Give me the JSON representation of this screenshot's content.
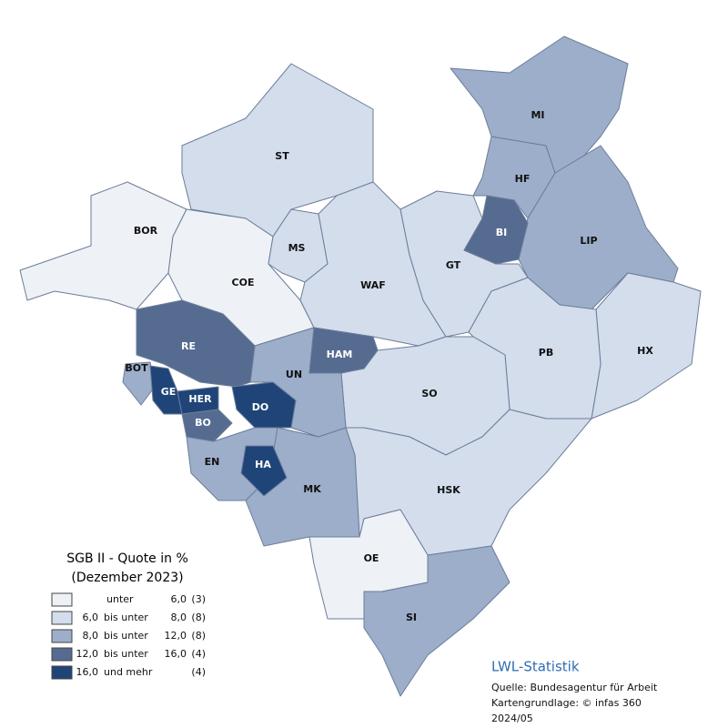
{
  "map": {
    "regions": [
      {
        "label": "BOR",
        "color": "#eef1f6"
      },
      {
        "label": "ST",
        "color": "#d3ddec"
      },
      {
        "label": "COE",
        "color": "#eef1f6"
      },
      {
        "label": "MS",
        "color": "#d3ddec"
      },
      {
        "label": "WAF",
        "color": "#d3ddec"
      },
      {
        "label": "GT",
        "color": "#d3ddec"
      },
      {
        "label": "BI",
        "color": "#566b90"
      },
      {
        "label": "HF",
        "color": "#9caec9"
      },
      {
        "label": "MI",
        "color": "#9caec9"
      },
      {
        "label": "LIP",
        "color": "#9caec9"
      },
      {
        "label": "HX",
        "color": "#d3ddec"
      },
      {
        "label": "PB",
        "color": "#d3ddec"
      },
      {
        "label": "HAM",
        "color": "#566b90"
      },
      {
        "label": "UN",
        "color": "#9caec9"
      },
      {
        "label": "RE",
        "color": "#566b90"
      },
      {
        "label": "BOT",
        "color": "#9caec9"
      },
      {
        "label": "GE",
        "color": "#1f4478"
      },
      {
        "label": "HER",
        "color": "#1f4478"
      },
      {
        "label": "BO",
        "color": "#566b90"
      },
      {
        "label": "DO",
        "color": "#1f4478"
      },
      {
        "label": "EN",
        "color": "#9caec9"
      },
      {
        "label": "HA",
        "color": "#1f4478"
      },
      {
        "label": "MK",
        "color": "#9caec9"
      },
      {
        "label": "SO",
        "color": "#d3ddec"
      },
      {
        "label": "HSK",
        "color": "#d3ddec"
      },
      {
        "label": "OE",
        "color": "#eef1f6"
      },
      {
        "label": "SI",
        "color": "#9caec9"
      }
    ],
    "legend": {
      "title": "SGB II - Quote in %",
      "subtitle": "(Dezember 2023)",
      "rows": [
        {
          "color": "#eef1f6",
          "text": "unter",
          "to": "6,0",
          "count": "(3)"
        },
        {
          "color": "#d3ddec",
          "from": "6,0",
          "text": "bis unter",
          "to": "8,0",
          "count": "(8)"
        },
        {
          "color": "#9caec9",
          "from": "8,0",
          "text": "bis unter",
          "to": "12,0",
          "count": "(8)"
        },
        {
          "color": "#566b90",
          "from": "12,0",
          "text": "bis unter",
          "to": "16,0",
          "count": "(4)"
        },
        {
          "color": "#1f4478",
          "from": "16,0",
          "text": "und mehr",
          "count": "(4)"
        }
      ]
    },
    "source": {
      "brand": "LWL-Statistik",
      "lines": [
        "Quelle: Bundesagentur für Arbeit",
        "Kartengrundlage: © infas 360",
        "2024/05"
      ]
    }
  }
}
